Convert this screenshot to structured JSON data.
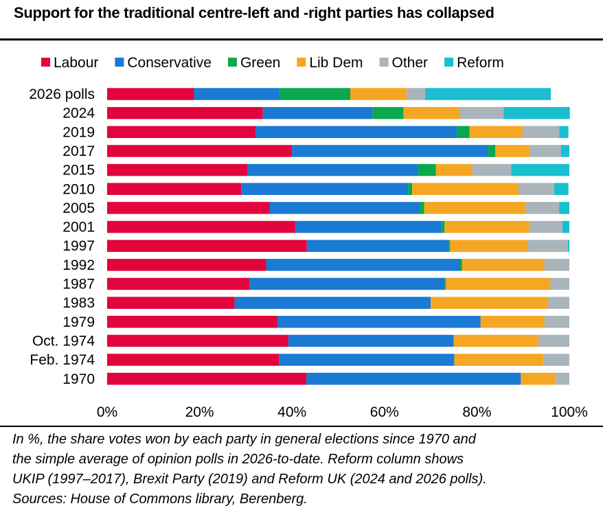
{
  "title": "Support for the traditional centre-left and -right parties has collapsed",
  "footnote": [
    "In %, the share votes won by each party in general elections since 1970 and",
    "the simple average of opinion polls in 2026-to-date. Reform column shows",
    "UKIP (1997–2017), Brexit Party (2019) and Reform UK (2024 and 2026 polls).",
    "Sources: House of Commons library, Berenberg."
  ],
  "chart_data": {
    "type": "bar",
    "orientation": "horizontal",
    "stacked": true,
    "legend_position": "top",
    "grid": false,
    "xlim": [
      0,
      100
    ],
    "x_ticks": [
      "0%",
      "20%",
      "40%",
      "60%",
      "80%",
      "100%"
    ],
    "categories": [
      "2026 polls",
      "2024",
      "2019",
      "2017",
      "2015",
      "2010",
      "2005",
      "2001",
      "1997",
      "1992",
      "1987",
      "1983",
      "1979",
      "Oct. 1974",
      "Feb. 1974",
      "1970"
    ],
    "series": [
      {
        "name": "Labour",
        "color": "#e2043c",
        "values": [
          18.8,
          33.7,
          32.1,
          40.0,
          30.4,
          29.0,
          35.2,
          40.7,
          43.2,
          34.4,
          30.8,
          27.6,
          36.9,
          39.2,
          37.2,
          43.1
        ]
      },
      {
        "name": "Conservative",
        "color": "#1a7ad4",
        "values": [
          18.6,
          23.7,
          43.6,
          42.4,
          36.9,
          36.1,
          32.4,
          31.7,
          30.7,
          41.9,
          42.2,
          42.4,
          43.9,
          35.8,
          37.9,
          46.4
        ]
      },
      {
        "name": "Green",
        "color": "#0aa84e",
        "values": [
          15.2,
          6.7,
          2.7,
          1.6,
          3.8,
          0.9,
          1.0,
          0.6,
          0.3,
          0.5,
          0.3,
          0.0,
          0.0,
          0.0,
          0.0,
          0.0
        ]
      },
      {
        "name": "Lib Dem",
        "color": "#f5a623",
        "values": [
          12.2,
          12.2,
          11.5,
          7.4,
          7.9,
          23.0,
          22.0,
          18.3,
          16.8,
          17.8,
          22.6,
          25.4,
          13.8,
          18.3,
          19.3,
          7.5
        ]
      },
      {
        "name": "Other",
        "color": "#a9b4bb",
        "values": [
          4.0,
          9.5,
          7.9,
          6.8,
          8.4,
          7.7,
          7.2,
          7.2,
          8.7,
          5.4,
          4.1,
          4.6,
          5.4,
          6.7,
          5.6,
          3.0
        ]
      },
      {
        "name": "Reform",
        "color": "#1bbdd0",
        "values": [
          27.2,
          14.3,
          2.0,
          1.8,
          12.6,
          3.1,
          2.2,
          1.5,
          0.3,
          0.0,
          0.0,
          0.0,
          0.0,
          0.0,
          0.0,
          0.0
        ]
      }
    ]
  }
}
